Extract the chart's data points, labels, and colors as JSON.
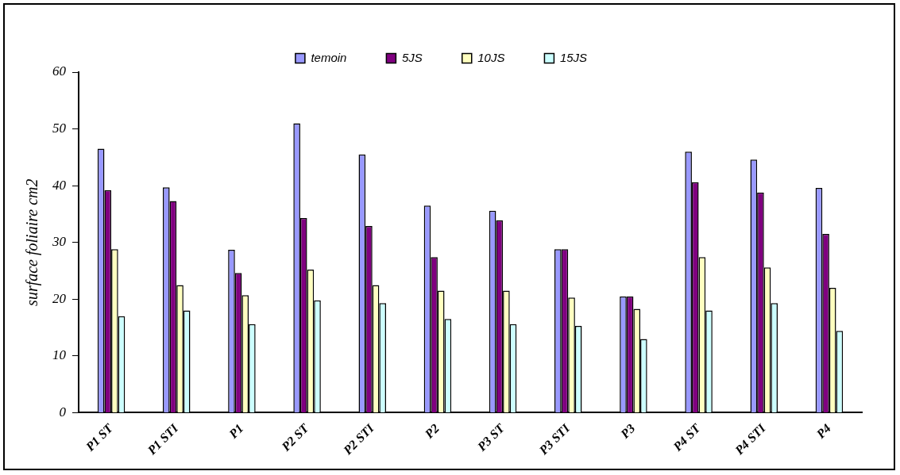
{
  "chart_data": {
    "type": "bar",
    "ylabel": "surface foliaire cm2",
    "categories": [
      "P1 ST",
      "P1 STI",
      "P1",
      "P2 ST",
      "P2 STI",
      "P2",
      "P3 ST",
      "P3 STI",
      "P3",
      "P4 ST",
      "P4 STI",
      "P4"
    ],
    "series": [
      {
        "name": "temoin",
        "color": "#9999ff",
        "values": [
          46.5,
          39.7,
          28.7,
          51,
          45.5,
          36.5,
          35.6,
          28.8,
          20.5,
          46,
          44.6,
          39.6
        ]
      },
      {
        "name": "5JS",
        "color": "#800080",
        "values": [
          39.2,
          37.3,
          24.6,
          34.3,
          32.9,
          27.4,
          33.9,
          28.8,
          20.5,
          40.6,
          38.8,
          31.5
        ]
      },
      {
        "name": "10JS",
        "color": "#ffffc0",
        "values": [
          28.8,
          22.5,
          20.7,
          25.2,
          22.5,
          21.5,
          21.5,
          20.3,
          18.3,
          27.4,
          25.6,
          22
        ]
      },
      {
        "name": "15JS",
        "color": "#ccffff",
        "values": [
          17,
          18,
          15.6,
          19.8,
          19.3,
          16.5,
          15.6,
          15.3,
          13,
          18,
          19.3,
          14.4
        ]
      }
    ],
    "ylim": [
      0,
      60
    ],
    "yticks": [
      0,
      10,
      20,
      30,
      40,
      50,
      60
    ],
    "grid": false,
    "legend": "top"
  }
}
